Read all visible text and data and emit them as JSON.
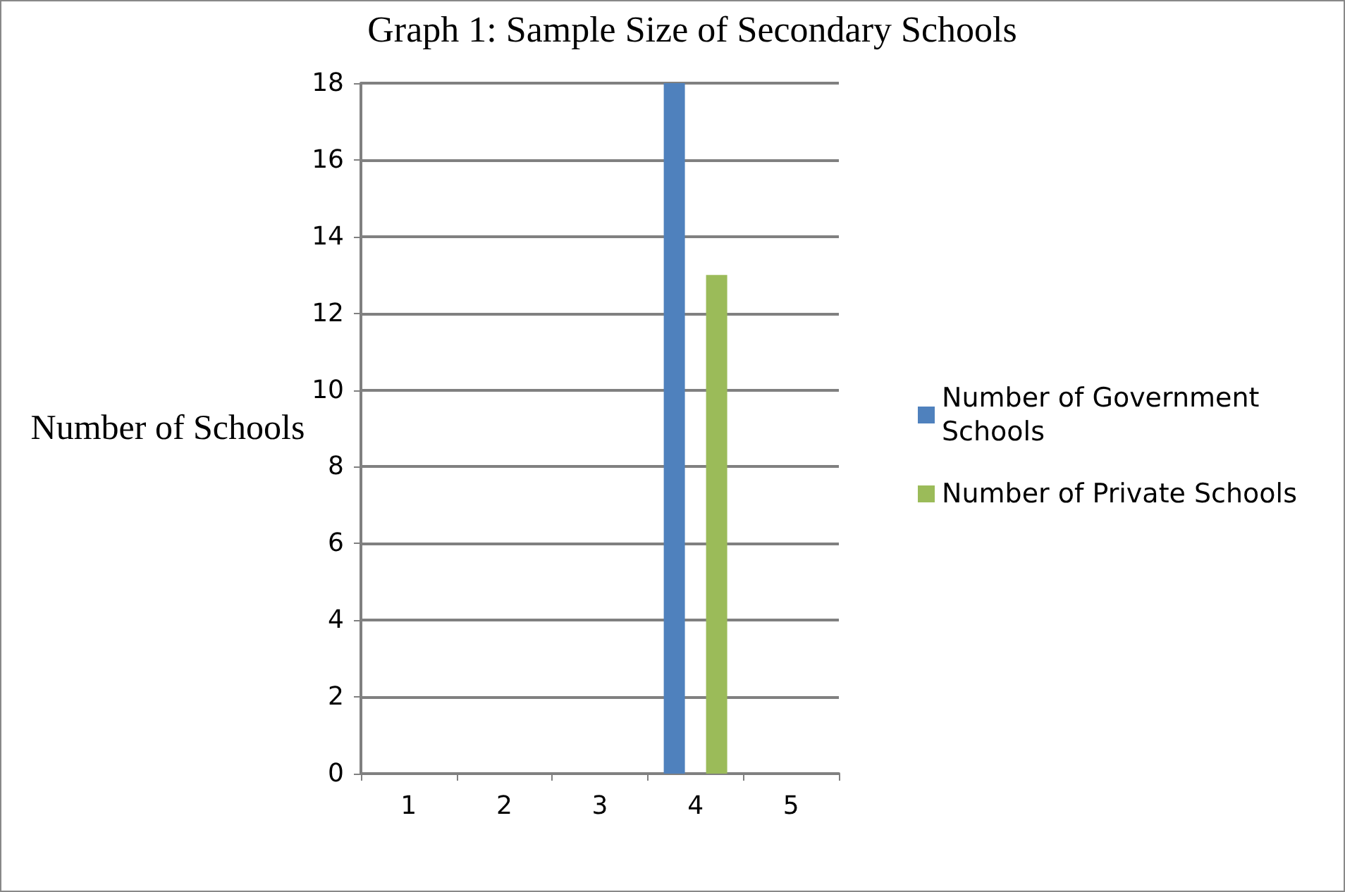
{
  "chart_data": {
    "type": "bar",
    "title": "Graph 1: Sample Size of Secondary Schools",
    "ylabel": "Number of Schools",
    "categories": [
      "1",
      "2",
      "3",
      "4",
      "5"
    ],
    "series": [
      {
        "name": "Number of Government Schools",
        "color": "#4f81bd",
        "values": [
          null,
          null,
          null,
          18,
          null
        ]
      },
      {
        "name": "Number of Private Schools",
        "color": "#9bbb59",
        "values": [
          null,
          null,
          null,
          13,
          null
        ]
      }
    ],
    "ylim": [
      0,
      18
    ],
    "yticks": [
      0,
      2,
      4,
      6,
      8,
      10,
      12,
      14,
      16,
      18
    ],
    "grid": "y",
    "legend": "right"
  }
}
